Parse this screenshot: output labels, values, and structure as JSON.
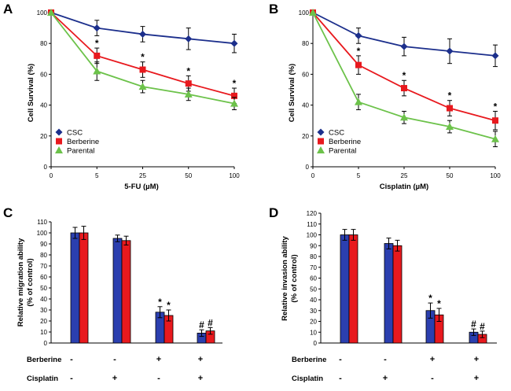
{
  "chart_data": [
    {
      "panel": "A",
      "type": "line",
      "xlabel": "5-FU (µM)",
      "ylabel": "Cell Survival (%)",
      "x": [
        "0",
        "5",
        "25",
        "50",
        "100"
      ],
      "yticks": [
        "0",
        "20",
        "40",
        "60",
        "80",
        "100"
      ],
      "ylim": [
        0,
        100
      ],
      "grid": false,
      "legend_position": "bottom-left",
      "series": [
        {
          "name": "CSC",
          "color": "#1c2f8c",
          "marker": "diamond",
          "values": [
            100,
            90,
            86,
            83,
            80
          ],
          "errors": [
            0,
            5,
            5,
            7,
            6
          ],
          "sig": [
            "",
            "",
            "",
            "",
            ""
          ]
        },
        {
          "name": "Berberine",
          "color": "#e8191e",
          "marker": "square",
          "values": [
            100,
            72,
            63,
            54,
            46
          ],
          "errors": [
            0,
            5,
            5,
            5,
            5
          ],
          "sig": [
            "",
            "*",
            "*",
            "*",
            "*"
          ]
        },
        {
          "name": "Parental",
          "color": "#6cc24a",
          "marker": "triangle",
          "values": [
            100,
            62,
            52,
            47,
            41
          ],
          "errors": [
            0,
            6,
            4,
            4,
            4
          ],
          "sig": [
            "",
            "",
            "",
            "",
            ""
          ]
        }
      ]
    },
    {
      "panel": "B",
      "type": "line",
      "xlabel": "Cisplatin (µM)",
      "ylabel": "Cell Survival (%)",
      "x": [
        "0",
        "5",
        "25",
        "50",
        "100"
      ],
      "yticks": [
        "0",
        "20",
        "40",
        "60",
        "80",
        "100"
      ],
      "ylim": [
        0,
        100
      ],
      "grid": false,
      "legend_position": "bottom-left",
      "series": [
        {
          "name": "CSC",
          "color": "#1c2f8c",
          "marker": "diamond",
          "values": [
            100,
            85,
            78,
            75,
            72
          ],
          "errors": [
            0,
            5,
            6,
            8,
            7
          ],
          "sig": [
            "",
            "",
            "",
            "",
            ""
          ]
        },
        {
          "name": "Berberine",
          "color": "#e8191e",
          "marker": "square",
          "values": [
            100,
            66,
            51,
            38,
            30
          ],
          "errors": [
            0,
            6,
            5,
            5,
            6
          ],
          "sig": [
            "",
            "*",
            "*",
            "*",
            "*"
          ]
        },
        {
          "name": "Parental",
          "color": "#6cc24a",
          "marker": "triangle",
          "values": [
            100,
            42,
            32,
            26,
            18
          ],
          "errors": [
            0,
            5,
            4,
            4,
            5
          ],
          "sig": [
            "",
            "",
            "",
            "",
            ""
          ]
        }
      ]
    },
    {
      "panel": "C",
      "type": "bar",
      "ylabel_lines": [
        "Relative migration ability",
        "(% of control)"
      ],
      "yticks": [
        "0",
        "10",
        "20",
        "30",
        "40",
        "50",
        "60",
        "70",
        "80",
        "90",
        "100",
        "110"
      ],
      "ylim": [
        0,
        110
      ],
      "conditions": [
        {
          "label": "Berberine",
          "signs": [
            "-",
            "-",
            "+",
            "+"
          ]
        },
        {
          "label": "Cisplatin",
          "signs": [
            "-",
            "+",
            "-",
            "+"
          ]
        }
      ],
      "series": [
        {
          "color": "#2b3faf",
          "values": [
            100,
            95,
            28,
            9
          ],
          "errors": [
            5,
            3,
            5,
            3
          ],
          "sig": [
            "",
            "",
            "*",
            "#"
          ]
        },
        {
          "color": "#e8191e",
          "values": [
            100,
            93,
            25,
            11
          ],
          "errors": [
            6,
            4,
            5,
            3
          ],
          "sig": [
            "",
            "",
            "*",
            "#"
          ]
        }
      ]
    },
    {
      "panel": "D",
      "type": "bar",
      "ylabel_lines": [
        "Relative invasion ability",
        "(% of control)"
      ],
      "yticks": [
        "0",
        "10",
        "20",
        "30",
        "40",
        "50",
        "60",
        "70",
        "80",
        "90",
        "100",
        "110",
        "120"
      ],
      "ylim": [
        0,
        120
      ],
      "conditions": [
        {
          "label": "Berberine",
          "signs": [
            "-",
            "-",
            "+",
            "+"
          ]
        },
        {
          "label": "Cisplatin",
          "signs": [
            "-",
            "+",
            "-",
            "+"
          ]
        }
      ],
      "series": [
        {
          "color": "#2b3faf",
          "values": [
            100,
            92,
            30,
            10
          ],
          "errors": [
            5,
            5,
            7,
            3
          ],
          "sig": [
            "",
            "",
            "*",
            "#"
          ]
        },
        {
          "color": "#e8191e",
          "values": [
            100,
            90,
            26,
            8
          ],
          "errors": [
            5,
            5,
            6,
            3
          ],
          "sig": [
            "",
            "",
            "*",
            "#"
          ]
        }
      ]
    }
  ]
}
